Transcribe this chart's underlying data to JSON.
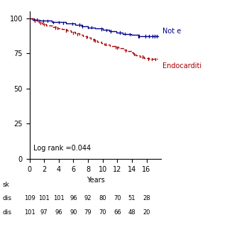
{
  "xlabel": "Years",
  "xlim": [
    0,
    18
  ],
  "ylim": [
    0,
    105
  ],
  "yticks": [
    0,
    25,
    50,
    75,
    100
  ],
  "xticks": [
    0,
    2,
    4,
    6,
    8,
    10,
    12,
    14,
    16
  ],
  "log_rank_text": "Log rank =0.044",
  "not_endo_color": "#00008B",
  "endo_color": "#AA0000",
  "at_risk_label": "sk",
  "row1_label": "dis",
  "row1_values": [
    109,
    101,
    101,
    96,
    92,
    80,
    70,
    51,
    28
  ],
  "row2_label": "dis",
  "row2_values": [
    101,
    97,
    96,
    90,
    79,
    70,
    66,
    48,
    20
  ],
  "not_endo_label": "Not e",
  "endo_label": "Endocarditi",
  "not_endo_t": [
    0,
    0.3,
    0.4,
    0.8,
    1.1,
    1.4,
    2.1,
    2.6,
    3.0,
    3.5,
    4.2,
    5.0,
    5.3,
    5.8,
    6.2,
    6.5,
    6.9,
    7.1,
    7.4,
    7.8,
    8.0,
    8.3,
    8.6,
    9.0,
    9.4,
    9.7,
    10.0,
    10.3,
    10.6,
    10.9,
    11.1,
    11.4,
    11.6,
    11.9,
    12.1,
    12.4,
    12.7,
    13.0,
    13.3,
    13.6,
    13.9,
    14.2,
    14.5,
    14.7,
    14.9,
    15.2,
    15.5,
    15.8,
    16.1,
    16.4,
    16.7,
    17.0,
    17.3,
    17.6
  ],
  "not_endo_s": [
    100,
    100,
    99.1,
    99.1,
    99.1,
    98.2,
    98.2,
    98.2,
    97.2,
    97.2,
    97.2,
    96.3,
    96.3,
    96.3,
    95.4,
    95.4,
    95.4,
    94.5,
    94.5,
    94.5,
    93.6,
    93.6,
    93.6,
    92.7,
    92.7,
    92.7,
    91.7,
    91.7,
    91.7,
    90.8,
    90.8,
    90.8,
    90.8,
    89.9,
    89.9,
    89.9,
    89.0,
    89.0,
    89.0,
    89.0,
    88.1,
    88.1,
    88.1,
    88.1,
    87.2,
    87.2,
    87.2,
    87.2,
    87.2,
    87.2,
    87.2,
    87.2,
    87.2,
    87.2
  ],
  "endo_t": [
    0,
    0.2,
    0.5,
    0.9,
    1.3,
    1.8,
    2.3,
    3.1,
    3.8,
    4.4,
    5.1,
    5.7,
    6.2,
    6.8,
    7.3,
    7.9,
    8.4,
    8.9,
    9.3,
    9.8,
    10.2,
    10.6,
    11.0,
    11.4,
    11.8,
    12.2,
    12.5,
    12.9,
    13.2,
    13.6,
    13.9,
    14.2,
    14.5,
    14.8,
    15.1,
    15.4,
    15.7,
    16.0,
    16.3,
    16.6,
    16.9,
    17.2,
    17.5
  ],
  "endo_s": [
    100,
    100,
    99.0,
    98.0,
    97.0,
    96.1,
    95.1,
    94.1,
    93.1,
    92.2,
    91.2,
    90.2,
    89.2,
    88.2,
    87.3,
    86.3,
    85.3,
    84.4,
    83.4,
    82.4,
    81.5,
    81.5,
    80.5,
    80.5,
    79.6,
    78.6,
    78.6,
    77.7,
    76.7,
    76.7,
    75.7,
    74.8,
    73.8,
    73.8,
    72.9,
    72.9,
    71.9,
    71.9,
    71.0,
    71.0,
    71.0,
    71.0,
    71.0
  ],
  "censor_ne_t": [
    0.6,
    1.9,
    3.2,
    4.6,
    5.9,
    7.2,
    8.5,
    9.8,
    11.1,
    12.4,
    13.7,
    14.9,
    15.8,
    16.3,
    16.8,
    17.1,
    17.4,
    1.0,
    2.5,
    4.0,
    6.8,
    8.0,
    10.5,
    13.0,
    15.0
  ],
  "censor_e_t": [
    0.7,
    2.0,
    3.5,
    5.0,
    6.5,
    7.8,
    9.0,
    10.4,
    11.8,
    13.1,
    14.3,
    15.5,
    16.2,
    16.7,
    17.2,
    1.5,
    3.8,
    6.0,
    8.8,
    12.0
  ]
}
